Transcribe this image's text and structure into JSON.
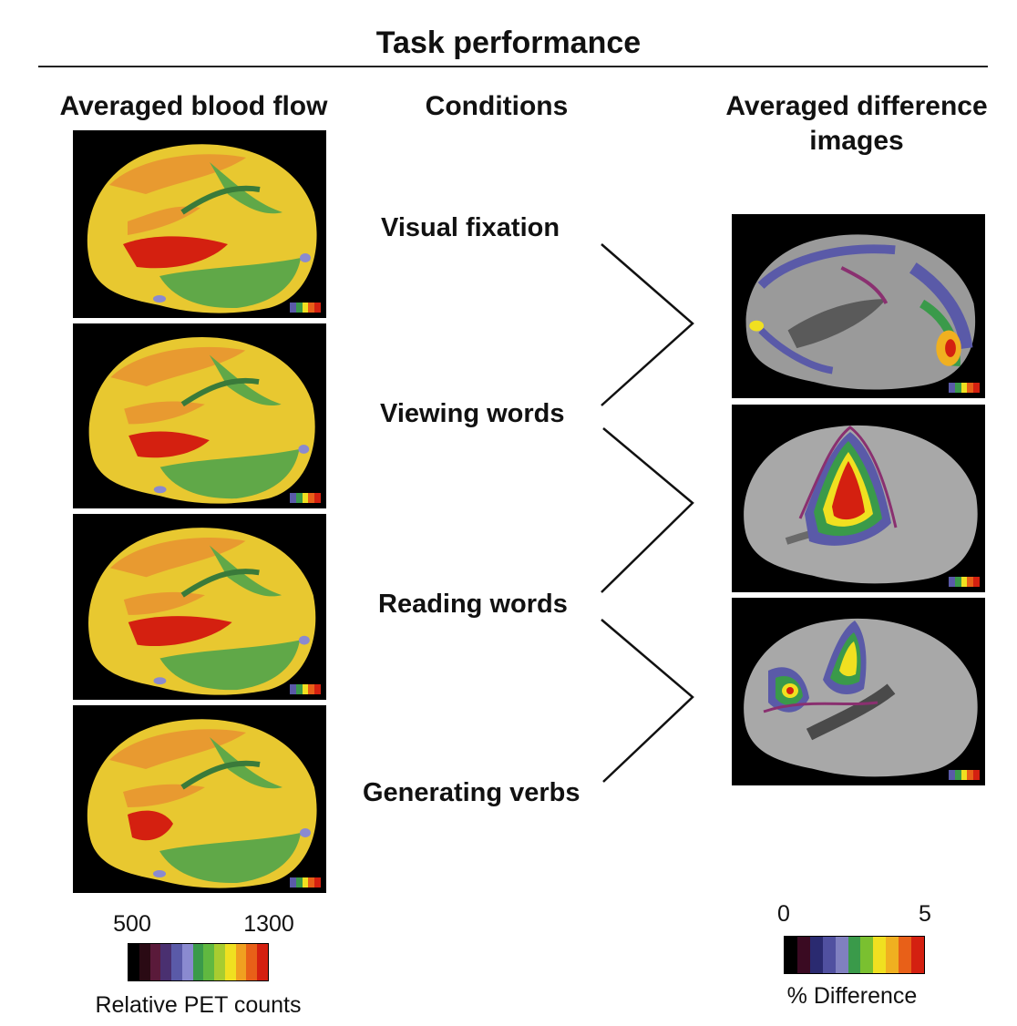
{
  "header": {
    "title": "Task performance"
  },
  "columns": {
    "left": "Averaged blood flow",
    "middle": "Conditions",
    "right_line1": "Averaged difference",
    "right_line2": "images"
  },
  "conditions": [
    {
      "label": "Visual fixation"
    },
    {
      "label": "Viewing words"
    },
    {
      "label": "Reading words"
    },
    {
      "label": "Generating verbs"
    }
  ],
  "left_scale": {
    "min": "500",
    "max": "1300",
    "caption": "Relative PET counts"
  },
  "right_scale": {
    "min": "0",
    "max": "5",
    "caption": "% Difference"
  },
  "colors": {
    "pet_scale": [
      "#000000",
      "#2a0a14",
      "#5a1a3a",
      "#4a3070",
      "#5a5aa8",
      "#8a8ad0",
      "#3a9a4a",
      "#60b840",
      "#a8cc30",
      "#f0e020",
      "#f0a020",
      "#e86018",
      "#d42010"
    ],
    "diff_scale": [
      "#000000",
      "#3a0a22",
      "#2a2a70",
      "#5050a0",
      "#8080c0",
      "#3a9a4a",
      "#7ac030",
      "#f0e020",
      "#f0b020",
      "#e86018",
      "#d42010"
    ]
  }
}
